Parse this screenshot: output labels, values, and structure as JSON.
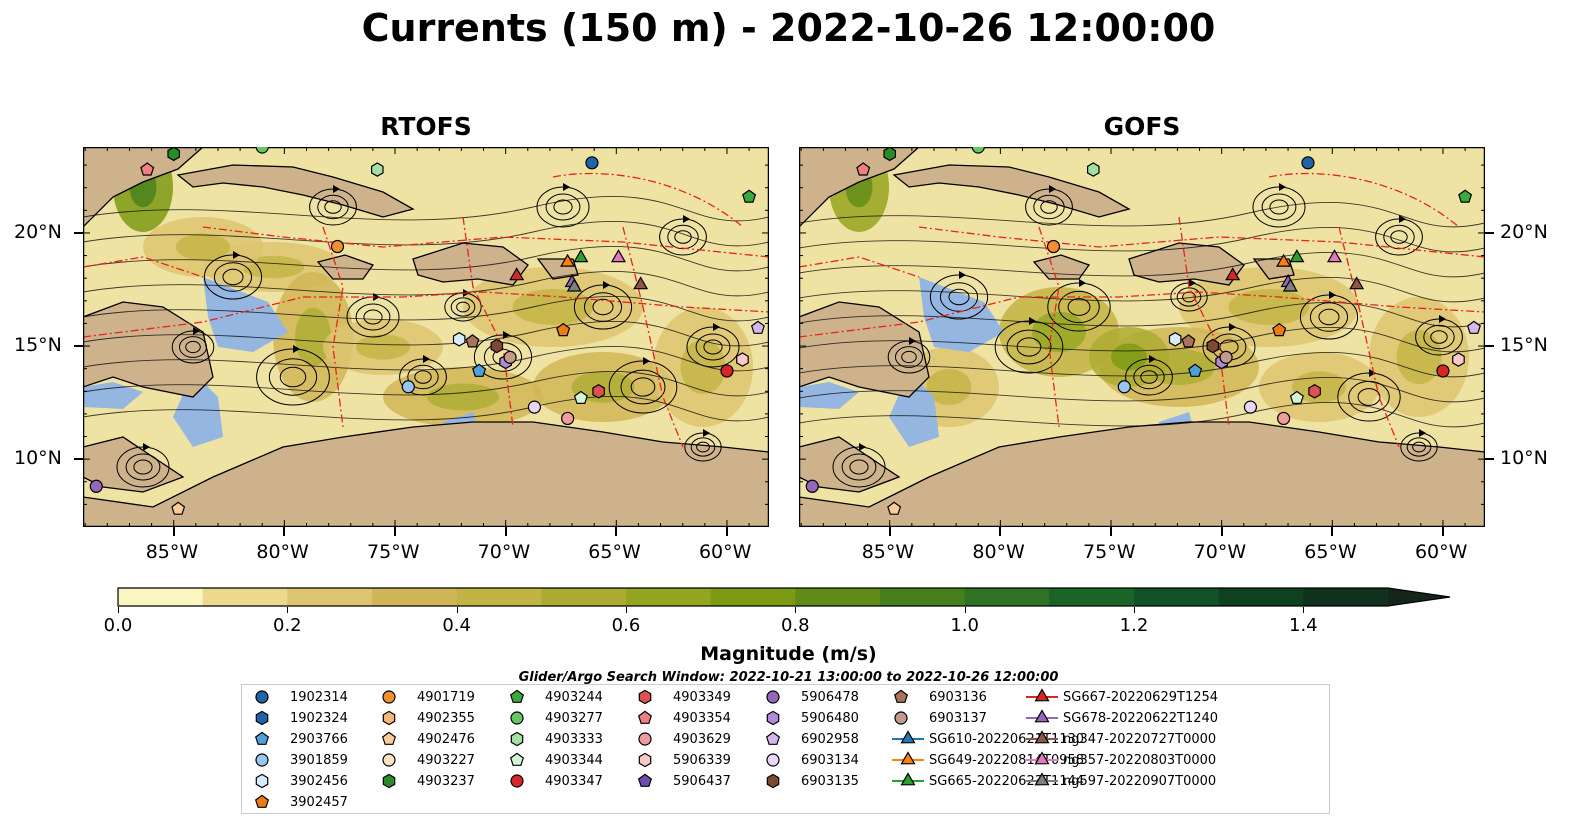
{
  "title": "Currents (150 m) - 2022-10-26 12:00:00",
  "panels": [
    {
      "title": "RTOFS"
    },
    {
      "title": "GOFS"
    }
  ],
  "axes": {
    "lon_labels": [
      "85°W",
      "80°W",
      "75°W",
      "70°W",
      "65°W",
      "60°W"
    ],
    "lon_values": [
      -85,
      -80,
      -75,
      -70,
      -65,
      -60
    ],
    "lat_labels": [
      "20°N",
      "15°N",
      "10°N"
    ],
    "lat_values": [
      20,
      15,
      10
    ],
    "lon_range": [
      -89.1,
      -58.1
    ],
    "lat_range": [
      7,
      23.8
    ]
  },
  "colorbar": {
    "label": "Magnitude (m/s)",
    "tick_labels": [
      "0.0",
      "0.2",
      "0.4",
      "0.6",
      "0.8",
      "1.0",
      "1.2",
      "1.4"
    ],
    "tick_values": [
      0.0,
      0.2,
      0.4,
      0.6,
      0.8,
      1.0,
      1.2,
      1.4
    ],
    "range": [
      0.0,
      1.5
    ],
    "extend": "max",
    "colors": [
      "#fbf5bf",
      "#ecd98e",
      "#ddc470",
      "#d1b657",
      "#c2b443",
      "#adac32",
      "#95a520",
      "#7c9a14",
      "#5f8b16",
      "#477f1d",
      "#2f7226",
      "#1a6428",
      "#115227",
      "#0f4121",
      "#10311b",
      "#14261a"
    ]
  },
  "search_window": "Glider/Argo Search Window: 2022-10-21 13:00:00 to 2022-10-26 12:00:00",
  "land_color": "#cdb28c",
  "shallow_color": "#94b6e0",
  "eez_color": "#e8231f",
  "legend": [
    {
      "label": "1902314",
      "marker": "circle",
      "color": "#1f63a8"
    },
    {
      "label": "1902324",
      "marker": "hexagon",
      "color": "#1f63a8"
    },
    {
      "label": "2903766",
      "marker": "pentagon",
      "color": "#4f9fd8"
    },
    {
      "label": "3901859",
      "marker": "circle",
      "color": "#97c7ee"
    },
    {
      "label": "3902456",
      "marker": "hexagon",
      "color": "#d6ecfa"
    },
    {
      "label": "3902457",
      "marker": "pentagon",
      "color": "#ee7c12"
    },
    {
      "label": "4901719",
      "marker": "circle",
      "color": "#f28f30"
    },
    {
      "label": "4902355",
      "marker": "hexagon",
      "color": "#f6b679"
    },
    {
      "label": "4902476",
      "marker": "pentagon",
      "color": "#f9cc99"
    },
    {
      "label": "4903227",
      "marker": "circle",
      "color": "#fde3c4"
    },
    {
      "label": "4903237",
      "marker": "hexagon",
      "color": "#2a8a2a"
    },
    {
      "label": "4903244",
      "marker": "pentagon",
      "color": "#3da93d"
    },
    {
      "label": "4903277",
      "marker": "circle",
      "color": "#66c766"
    },
    {
      "label": "4903333",
      "marker": "hexagon",
      "color": "#a3e0a3"
    },
    {
      "label": "4903344",
      "marker": "pentagon",
      "color": "#d4f5d4"
    },
    {
      "label": "4903347",
      "marker": "circle",
      "color": "#d62728"
    },
    {
      "label": "4903349",
      "marker": "hexagon",
      "color": "#e15050"
    },
    {
      "label": "4903354",
      "marker": "pentagon",
      "color": "#f08080"
    },
    {
      "label": "4903629",
      "marker": "circle",
      "color": "#f19c9c"
    },
    {
      "label": "5906339",
      "marker": "hexagon",
      "color": "#f9c8c8"
    },
    {
      "label": "5906437",
      "marker": "pentagon",
      "color": "#6e4fb0"
    },
    {
      "label": "5906478",
      "marker": "circle",
      "color": "#9467bd"
    },
    {
      "label": "5906480",
      "marker": "hexagon",
      "color": "#b08ad6"
    },
    {
      "label": "6902958",
      "marker": "pentagon",
      "color": "#d4b8ec"
    },
    {
      "label": "6903134",
      "marker": "circle",
      "color": "#ead6f6"
    },
    {
      "label": "6903135",
      "marker": "hexagon",
      "color": "#7b4a35"
    },
    {
      "label": "6903136",
      "marker": "pentagon",
      "color": "#a9735c"
    },
    {
      "label": "6903137",
      "marker": "circle",
      "color": "#c49a88"
    },
    {
      "label": "SG610-20220621T1130",
      "marker": "triangle-line",
      "color": "#1f77b4"
    },
    {
      "label": "SG649-20220814T0958",
      "marker": "triangle-line",
      "color": "#ff7f0e"
    },
    {
      "label": "SG665-20220623T1144",
      "marker": "triangle-line",
      "color": "#2ca02c"
    },
    {
      "label": "SG667-20220629T1254",
      "marker": "triangle-line",
      "color": "#d62728"
    },
    {
      "label": "SG678-20220622T1240",
      "marker": "triangle-line",
      "color": "#9467bd"
    },
    {
      "label": "ng347-20220727T0000",
      "marker": "triangle-line",
      "color": "#8c564b"
    },
    {
      "label": "ng357-20220803T0000",
      "marker": "triangle-line",
      "color": "#e377c2"
    },
    {
      "label": "ng597-20220907T0000",
      "marker": "triangle-line",
      "color": "#7f7f7f"
    }
  ],
  "markers": [
    {
      "id": "1902314",
      "lon": -66.1,
      "lat": 23.1,
      "marker": "circle",
      "color": "#1f63a8"
    },
    {
      "id": "4903244",
      "lon": -59.0,
      "lat": 21.6,
      "marker": "pentagon",
      "color": "#3da93d"
    },
    {
      "id": "4903237",
      "lon": -85.0,
      "lat": 23.5,
      "marker": "hexagon",
      "color": "#2a8a2a"
    },
    {
      "id": "4903354",
      "lon": -86.2,
      "lat": 22.8,
      "marker": "pentagon",
      "color": "#f08080"
    },
    {
      "id": "4903333",
      "lon": -75.8,
      "lat": 22.8,
      "marker": "hexagon",
      "color": "#a3e0a3"
    },
    {
      "id": "4901719",
      "lon": -77.6,
      "lat": 19.4,
      "marker": "circle",
      "color": "#f28f30"
    },
    {
      "id": "SG667-20220629T1254",
      "lon": -69.5,
      "lat": 18.1,
      "marker": "triangle",
      "color": "#d62728"
    },
    {
      "id": "SG665-20220623T1144",
      "lon": -66.6,
      "lat": 18.9,
      "marker": "triangle",
      "color": "#2ca02c"
    },
    {
      "id": "SG649-20220814T0958",
      "lon": -67.2,
      "lat": 18.7,
      "marker": "triangle",
      "color": "#ff7f0e"
    },
    {
      "id": "ng357-20220803T0000",
      "lon": -64.9,
      "lat": 18.9,
      "marker": "triangle",
      "color": "#e377c2"
    },
    {
      "id": "SG678-20220622T1240",
      "lon": -67.0,
      "lat": 17.8,
      "marker": "triangle",
      "color": "#9467bd"
    },
    {
      "id": "ng597-20220907T0000",
      "lon": -66.9,
      "lat": 17.6,
      "marker": "triangle",
      "color": "#7f7f7f"
    },
    {
      "id": "ng347-20220727T0000",
      "lon": -63.9,
      "lat": 17.7,
      "marker": "triangle",
      "color": "#8c564b"
    },
    {
      "id": "3902457",
      "lon": -67.4,
      "lat": 15.7,
      "marker": "pentagon",
      "color": "#ee7c12"
    },
    {
      "id": "6902958",
      "lon": -58.6,
      "lat": 15.8,
      "marker": "pentagon",
      "color": "#d4b8ec"
    },
    {
      "id": "3902456",
      "lon": -72.1,
      "lat": 15.3,
      "marker": "hexagon",
      "color": "#d6ecfa"
    },
    {
      "id": "6903136",
      "lon": -71.5,
      "lat": 15.2,
      "marker": "pentagon",
      "color": "#a9735c"
    },
    {
      "id": "6903135",
      "lon": -70.4,
      "lat": 15.0,
      "marker": "hexagon",
      "color": "#7b4a35"
    },
    {
      "id": "5906480",
      "lon": -70.0,
      "lat": 14.3,
      "marker": "hexagon",
      "color": "#b08ad6"
    },
    {
      "id": "6903137",
      "lon": -69.8,
      "lat": 14.5,
      "marker": "circle",
      "color": "#c49a88"
    },
    {
      "id": "2903766",
      "lon": -71.2,
      "lat": 13.9,
      "marker": "pentagon",
      "color": "#4f9fd8"
    },
    {
      "id": "5906339",
      "lon": -59.3,
      "lat": 14.4,
      "marker": "hexagon",
      "color": "#f9c8c8"
    },
    {
      "id": "4903347",
      "lon": -60.0,
      "lat": 13.9,
      "marker": "circle",
      "color": "#d62728"
    },
    {
      "id": "3901859",
      "lon": -74.4,
      "lat": 13.2,
      "marker": "circle",
      "color": "#97c7ee"
    },
    {
      "id": "4903344",
      "lon": -66.6,
      "lat": 12.7,
      "marker": "pentagon",
      "color": "#d4f5d4"
    },
    {
      "id": "4903349",
      "lon": -65.8,
      "lat": 13.0,
      "marker": "hexagon",
      "color": "#e15050"
    },
    {
      "id": "6903134",
      "lon": -68.7,
      "lat": 12.3,
      "marker": "circle",
      "color": "#ead6f6"
    },
    {
      "id": "4903629",
      "lon": -67.2,
      "lat": 11.8,
      "marker": "circle",
      "color": "#f19c9c"
    },
    {
      "id": "5906478",
      "lon": -88.5,
      "lat": 8.8,
      "marker": "circle",
      "color": "#9467bd"
    },
    {
      "id": "4902476",
      "lon": -84.8,
      "lat": 7.8,
      "marker": "pentagon",
      "color": "#f9cc99"
    },
    {
      "id": "4903277",
      "lon": -81.0,
      "lat": 23.8,
      "marker": "circle",
      "color": "#66c766"
    }
  ]
}
